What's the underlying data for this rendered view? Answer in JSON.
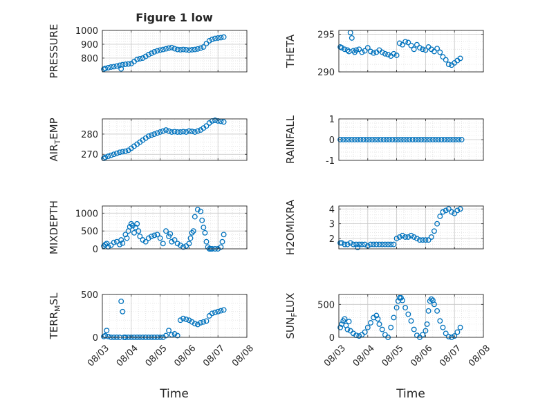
{
  "figure": {
    "title": "Figure 1 low",
    "xlabel": "Time",
    "xtick_labels": [
      "08/03",
      "08/04",
      "08/05",
      "08/06",
      "08/07",
      "08/08"
    ],
    "marker_color": "#0072BD",
    "grid_color": "#c8c8c8"
  },
  "chart_data": [
    {
      "type": "scatter",
      "ylabel": "PRESSURE",
      "ylim": [
        700,
        1000
      ],
      "yticks": [
        800,
        900,
        1000
      ],
      "xlim": [
        3,
        8
      ],
      "grid": true,
      "x": [
        3.05,
        3.1,
        3.2,
        3.3,
        3.4,
        3.5,
        3.6,
        3.65,
        3.7,
        3.8,
        3.9,
        4.0,
        4.1,
        4.2,
        4.3,
        4.4,
        4.5,
        4.6,
        4.7,
        4.8,
        4.9,
        5.0,
        5.1,
        5.2,
        5.3,
        5.4,
        5.5,
        5.6,
        5.7,
        5.8,
        5.9,
        6.0,
        6.1,
        6.2,
        6.3,
        6.4,
        6.5,
        6.6,
        6.7,
        6.8,
        6.9,
        7.0,
        7.1,
        7.2
      ],
      "y": [
        720,
        725,
        730,
        735,
        738,
        742,
        748,
        722,
        752,
        755,
        757,
        760,
        775,
        790,
        795,
        800,
        812,
        825,
        835,
        845,
        852,
        858,
        862,
        867,
        872,
        876,
        868,
        862,
        860,
        862,
        860,
        858,
        860,
        862,
        866,
        872,
        880,
        905,
        925,
        935,
        942,
        945,
        948,
        952
      ]
    },
    {
      "type": "scatter",
      "ylabel": "THETA",
      "ylim": [
        290,
        295.5
      ],
      "yticks": [
        290,
        295
      ],
      "xlim": [
        3,
        8
      ],
      "grid": true,
      "x": [
        3.05,
        3.1,
        3.2,
        3.3,
        3.35,
        3.4,
        3.45,
        3.5,
        3.55,
        3.6,
        3.7,
        3.8,
        3.9,
        4.0,
        4.1,
        4.2,
        4.3,
        4.4,
        4.5,
        4.6,
        4.7,
        4.8,
        4.9,
        5.0,
        5.1,
        5.2,
        5.3,
        5.4,
        5.5,
        5.6,
        5.7,
        5.8,
        5.9,
        6.0,
        6.1,
        6.2,
        6.3,
        6.4,
        6.5,
        6.6,
        6.7,
        6.8,
        6.9,
        7.0,
        7.1,
        7.2
      ],
      "y": [
        293.3,
        293.2,
        293.0,
        292.9,
        292.7,
        295.2,
        294.5,
        292.8,
        292.6,
        292.9,
        293.0,
        292.6,
        292.8,
        293.2,
        292.7,
        292.5,
        292.6,
        292.9,
        292.6,
        292.4,
        292.3,
        292.1,
        292.4,
        292.2,
        293.8,
        293.6,
        294.0,
        293.9,
        293.5,
        293.0,
        293.6,
        293.2,
        293.0,
        292.9,
        293.3,
        293.0,
        292.7,
        293.1,
        292.6,
        292.0,
        291.6,
        291.0,
        290.9,
        291.2,
        291.5,
        291.8
      ]
    },
    {
      "type": "scatter",
      "ylabel": "AIR_TEMP",
      "ylim": [
        267,
        287.5
      ],
      "yticks": [
        270,
        280
      ],
      "xlim": [
        3,
        8
      ],
      "grid": true,
      "x": [
        3.05,
        3.1,
        3.2,
        3.3,
        3.4,
        3.5,
        3.6,
        3.7,
        3.8,
        3.9,
        4.0,
        4.1,
        4.2,
        4.3,
        4.4,
        4.5,
        4.6,
        4.7,
        4.8,
        4.9,
        5.0,
        5.1,
        5.2,
        5.3,
        5.4,
        5.5,
        5.6,
        5.7,
        5.8,
        5.9,
        6.0,
        6.1,
        6.2,
        6.3,
        6.4,
        6.5,
        6.6,
        6.7,
        6.8,
        6.9,
        7.0,
        7.1,
        7.2
      ],
      "y": [
        268.0,
        268.5,
        269.0,
        269.5,
        270.0,
        270.5,
        271.0,
        271.3,
        271.5,
        272.0,
        273.0,
        274.0,
        275.0,
        276.0,
        277.0,
        278.0,
        279.0,
        279.5,
        280.0,
        280.5,
        281.0,
        281.5,
        282.0,
        281.5,
        281.0,
        281.2,
        281.0,
        281.0,
        281.2,
        281.0,
        281.5,
        281.3,
        281.0,
        281.5,
        282.0,
        283.0,
        284.0,
        285.5,
        286.5,
        286.8,
        286.5,
        286.3,
        286.0
      ]
    },
    {
      "type": "scatter",
      "ylabel": "RAINFALL",
      "ylim": [
        -1,
        1
      ],
      "yticks": [
        -1,
        0,
        1
      ],
      "xlim": [
        3,
        8
      ],
      "grid": true,
      "x": [
        3.05,
        3.15,
        3.25,
        3.35,
        3.45,
        3.55,
        3.65,
        3.75,
        3.85,
        3.95,
        4.05,
        4.15,
        4.25,
        4.35,
        4.45,
        4.55,
        4.65,
        4.75,
        4.85,
        4.95,
        5.05,
        5.15,
        5.25,
        5.35,
        5.45,
        5.55,
        5.65,
        5.75,
        5.85,
        5.95,
        6.05,
        6.15,
        6.25,
        6.35,
        6.45,
        6.55,
        6.65,
        6.75,
        6.85,
        6.95,
        7.05,
        7.15,
        7.25
      ],
      "y": [
        0,
        0,
        0,
        0,
        0,
        0,
        0,
        0,
        0,
        0,
        0,
        0,
        0,
        0,
        0,
        0,
        0,
        0,
        0,
        0,
        0,
        0,
        0,
        0,
        0,
        0,
        0,
        0,
        0,
        0,
        0,
        0,
        0,
        0,
        0,
        0,
        0,
        0,
        0,
        0,
        0,
        0,
        0
      ]
    },
    {
      "type": "scatter",
      "ylabel": "MIXDEPTH",
      "ylim": [
        0,
        1200
      ],
      "yticks": [
        0,
        500,
        1000
      ],
      "xlim": [
        3,
        8
      ],
      "grid": true,
      "x": [
        3.05,
        3.1,
        3.15,
        3.2,
        3.3,
        3.4,
        3.5,
        3.6,
        3.65,
        3.7,
        3.8,
        3.85,
        3.9,
        3.95,
        4.0,
        4.05,
        4.1,
        4.15,
        4.2,
        4.25,
        4.3,
        4.4,
        4.5,
        4.6,
        4.7,
        4.8,
        4.9,
        5.0,
        5.1,
        5.2,
        5.3,
        5.35,
        5.4,
        5.5,
        5.6,
        5.7,
        5.8,
        5.9,
        6.0,
        6.05,
        6.1,
        6.15,
        6.2,
        6.3,
        6.4,
        6.45,
        6.5,
        6.55,
        6.6,
        6.65,
        6.7,
        6.75,
        6.8,
        6.9,
        7.0,
        7.1,
        7.15,
        7.2
      ],
      "y": [
        80,
        120,
        150,
        60,
        100,
        180,
        200,
        120,
        250,
        160,
        400,
        300,
        500,
        620,
        700,
        650,
        450,
        600,
        700,
        500,
        350,
        250,
        200,
        300,
        350,
        380,
        400,
        300,
        150,
        500,
        350,
        420,
        200,
        250,
        150,
        100,
        50,
        80,
        150,
        300,
        450,
        500,
        900,
        1100,
        1050,
        800,
        600,
        450,
        200,
        50,
        0,
        0,
        0,
        0,
        0,
        50,
        200,
        400
      ]
    },
    {
      "type": "scatter",
      "ylabel": "H2OMIXRA",
      "ylim": [
        1.3,
        4.2
      ],
      "yticks": [
        2,
        3,
        4
      ],
      "xlim": [
        3,
        8
      ],
      "grid": true,
      "x": [
        3.05,
        3.1,
        3.2,
        3.3,
        3.4,
        3.5,
        3.6,
        3.65,
        3.7,
        3.8,
        3.9,
        4.0,
        4.1,
        4.2,
        4.3,
        4.4,
        4.5,
        4.6,
        4.7,
        4.8,
        4.9,
        5.0,
        5.1,
        5.2,
        5.3,
        5.4,
        5.5,
        5.6,
        5.7,
        5.8,
        5.9,
        6.0,
        6.1,
        6.2,
        6.3,
        6.4,
        6.5,
        6.6,
        6.7,
        6.8,
        6.9,
        7.0,
        7.1,
        7.2
      ],
      "y": [
        1.7,
        1.7,
        1.6,
        1.6,
        1.7,
        1.6,
        1.6,
        1.4,
        1.6,
        1.6,
        1.6,
        1.5,
        1.6,
        1.6,
        1.6,
        1.6,
        1.6,
        1.6,
        1.6,
        1.6,
        1.6,
        2.0,
        2.1,
        2.2,
        2.1,
        2.1,
        2.2,
        2.1,
        2.0,
        1.9,
        1.9,
        1.9,
        1.9,
        2.1,
        2.5,
        3.0,
        3.5,
        3.8,
        3.9,
        4.0,
        3.8,
        3.7,
        3.9,
        4.0
      ]
    },
    {
      "type": "scatter",
      "ylabel": "TERR_MSL",
      "ylim": [
        0,
        500
      ],
      "yticks": [
        0,
        500
      ],
      "xlim": [
        3,
        8
      ],
      "grid": true,
      "x": [
        3.05,
        3.1,
        3.15,
        3.2,
        3.3,
        3.4,
        3.5,
        3.6,
        3.65,
        3.7,
        3.75,
        3.8,
        3.9,
        4.0,
        4.1,
        4.2,
        4.3,
        4.4,
        4.5,
        4.6,
        4.7,
        4.8,
        4.9,
        5.0,
        5.1,
        5.2,
        5.3,
        5.4,
        5.5,
        5.6,
        5.7,
        5.8,
        5.9,
        6.0,
        6.1,
        6.2,
        6.3,
        6.4,
        6.5,
        6.6,
        6.7,
        6.8,
        6.9,
        7.0,
        7.1,
        7.2
      ],
      "y": [
        10,
        20,
        80,
        10,
        0,
        0,
        0,
        0,
        420,
        300,
        0,
        0,
        0,
        0,
        0,
        0,
        0,
        0,
        0,
        0,
        0,
        0,
        0,
        0,
        0,
        20,
        80,
        30,
        40,
        20,
        200,
        220,
        210,
        200,
        180,
        160,
        150,
        170,
        180,
        190,
        250,
        280,
        290,
        300,
        310,
        320
      ]
    },
    {
      "type": "scatter",
      "ylabel": "SUN_FLUX",
      "ylim": [
        0,
        650
      ],
      "yticks": [
        0,
        500
      ],
      "xlim": [
        3,
        8
      ],
      "grid": true,
      "x": [
        3.05,
        3.1,
        3.15,
        3.2,
        3.25,
        3.3,
        3.35,
        3.4,
        3.5,
        3.6,
        3.7,
        3.8,
        3.9,
        4.0,
        4.1,
        4.2,
        4.3,
        4.35,
        4.4,
        4.5,
        4.6,
        4.7,
        4.8,
        4.9,
        5.0,
        5.05,
        5.1,
        5.15,
        5.2,
        5.3,
        5.4,
        5.5,
        5.6,
        5.7,
        5.8,
        5.9,
        6.0,
        6.05,
        6.1,
        6.15,
        6.2,
        6.25,
        6.3,
        6.4,
        6.5,
        6.6,
        6.7,
        6.8,
        6.9,
        7.0,
        7.1,
        7.2
      ],
      "y": [
        150,
        200,
        250,
        280,
        180,
        120,
        240,
        100,
        60,
        30,
        20,
        40,
        80,
        150,
        220,
        300,
        330,
        280,
        200,
        120,
        40,
        0,
        150,
        300,
        450,
        550,
        600,
        600,
        560,
        450,
        350,
        250,
        120,
        30,
        0,
        40,
        100,
        200,
        400,
        550,
        580,
        560,
        500,
        400,
        250,
        150,
        60,
        10,
        0,
        20,
        80,
        150
      ]
    }
  ]
}
